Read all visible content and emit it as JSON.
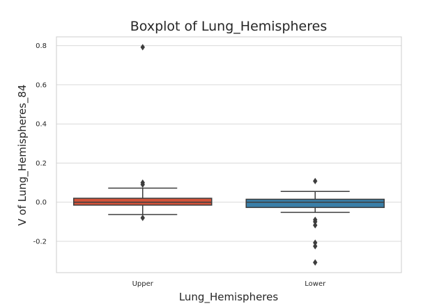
{
  "chart_data": {
    "type": "box",
    "title": "Boxplot of Lung_Hemispheres",
    "xlabel": "Lung_Hemispheres",
    "ylabel": "V of Lung_Hemispheres_84",
    "ylim": [
      -0.36,
      0.845
    ],
    "yticks": [
      "0.8",
      "0.6",
      "0.4",
      "0.2",
      "0.0",
      "-0.2"
    ],
    "yticks_values": [
      0.8,
      0.6,
      0.4,
      0.2,
      0.0,
      -0.2
    ],
    "grid": true,
    "categories": [
      "Upper",
      "Lower"
    ],
    "boxes": [
      {
        "category": "Upper",
        "color": "#d1533a",
        "whisker_low": -0.063,
        "q1": -0.015,
        "median": 0.0,
        "q3": 0.02,
        "whisker_high": 0.072,
        "outliers": [
          0.792,
          0.1,
          0.09,
          -0.08
        ]
      },
      {
        "category": "Lower",
        "color": "#3a7fa8",
        "whisker_low": -0.052,
        "q1": -0.027,
        "median": 0.0,
        "q3": 0.015,
        "whisker_high": 0.055,
        "outliers": [
          0.108,
          -0.09,
          -0.1,
          -0.118,
          -0.207,
          -0.225,
          -0.308
        ]
      }
    ]
  }
}
